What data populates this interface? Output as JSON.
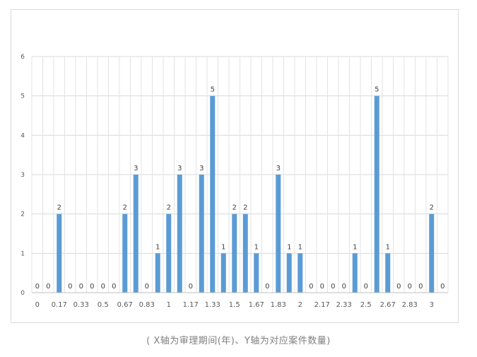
{
  "chart_data": {
    "type": "bar",
    "categories": [
      "0",
      "0.08",
      "0.17",
      "0.25",
      "0.33",
      "0.42",
      "0.5",
      "0.58",
      "0.67",
      "0.75",
      "0.83",
      "0.92",
      "1",
      "1.08",
      "1.17",
      "1.25",
      "1.33",
      "1.42",
      "1.5",
      "1.58",
      "1.67",
      "1.75",
      "1.83",
      "1.92",
      "2",
      "2.08",
      "2.17",
      "2.25",
      "2.33",
      "2.42",
      "2.5",
      "2.58",
      "2.67",
      "2.75",
      "2.83",
      "2.92",
      "3",
      "3.08"
    ],
    "tick_labels": [
      "0",
      "",
      "0.17",
      "",
      "0.33",
      "",
      "0.5",
      "",
      "0.67",
      "",
      "0.83",
      "",
      "1",
      "",
      "1.17",
      "",
      "1.33",
      "",
      "1.5",
      "",
      "1.67",
      "",
      "1.83",
      "",
      "2",
      "",
      "2.17",
      "",
      "2.33",
      "",
      "2.5",
      "",
      "2.67",
      "",
      "2.83",
      "",
      "3",
      ""
    ],
    "values": [
      0,
      0,
      2,
      0,
      0,
      0,
      0,
      0,
      2,
      3,
      0,
      1,
      2,
      3,
      0,
      3,
      5,
      1,
      2,
      2,
      1,
      0,
      3,
      1,
      1,
      0,
      0,
      0,
      0,
      1,
      0,
      5,
      1,
      0,
      0,
      0,
      2,
      0
    ],
    "ylim": [
      0,
      6
    ],
    "yticks": [
      0,
      1,
      2,
      3,
      4,
      5,
      6
    ],
    "grid": true,
    "bar_color": "#5b9bd5",
    "title": "",
    "xlabel": "",
    "ylabel": ""
  },
  "caption": "( X轴为审理期间(年)、Y轴为对应案件数量)"
}
